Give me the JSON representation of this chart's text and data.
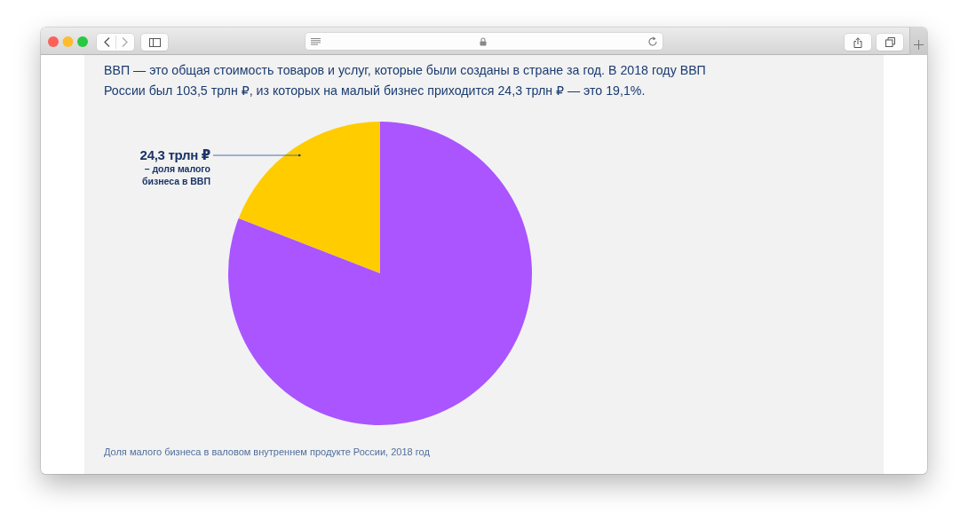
{
  "chart_data": {
    "type": "pie",
    "title": "ВВП — это общая стоимость товаров и услуг, которые были созданы в стране за год. В 2018 году ВВП России был 103,5 трлн ₽, из которых на малый бизнес приходится 24,3 трлн ₽ — это 19,1%.",
    "categories": [
      null,
      null
    ],
    "values": [
      19.1,
      80.9
    ],
    "colors": [
      "#ffcc00",
      "#aa55ff"
    ],
    "annotations": [
      "24,3 трлн ₽",
      "– доля малого бизнеса в ВВП",
      "Доля малого бизнеса в валовом внутреннем продукте России, 2018 год"
    ]
  }
}
